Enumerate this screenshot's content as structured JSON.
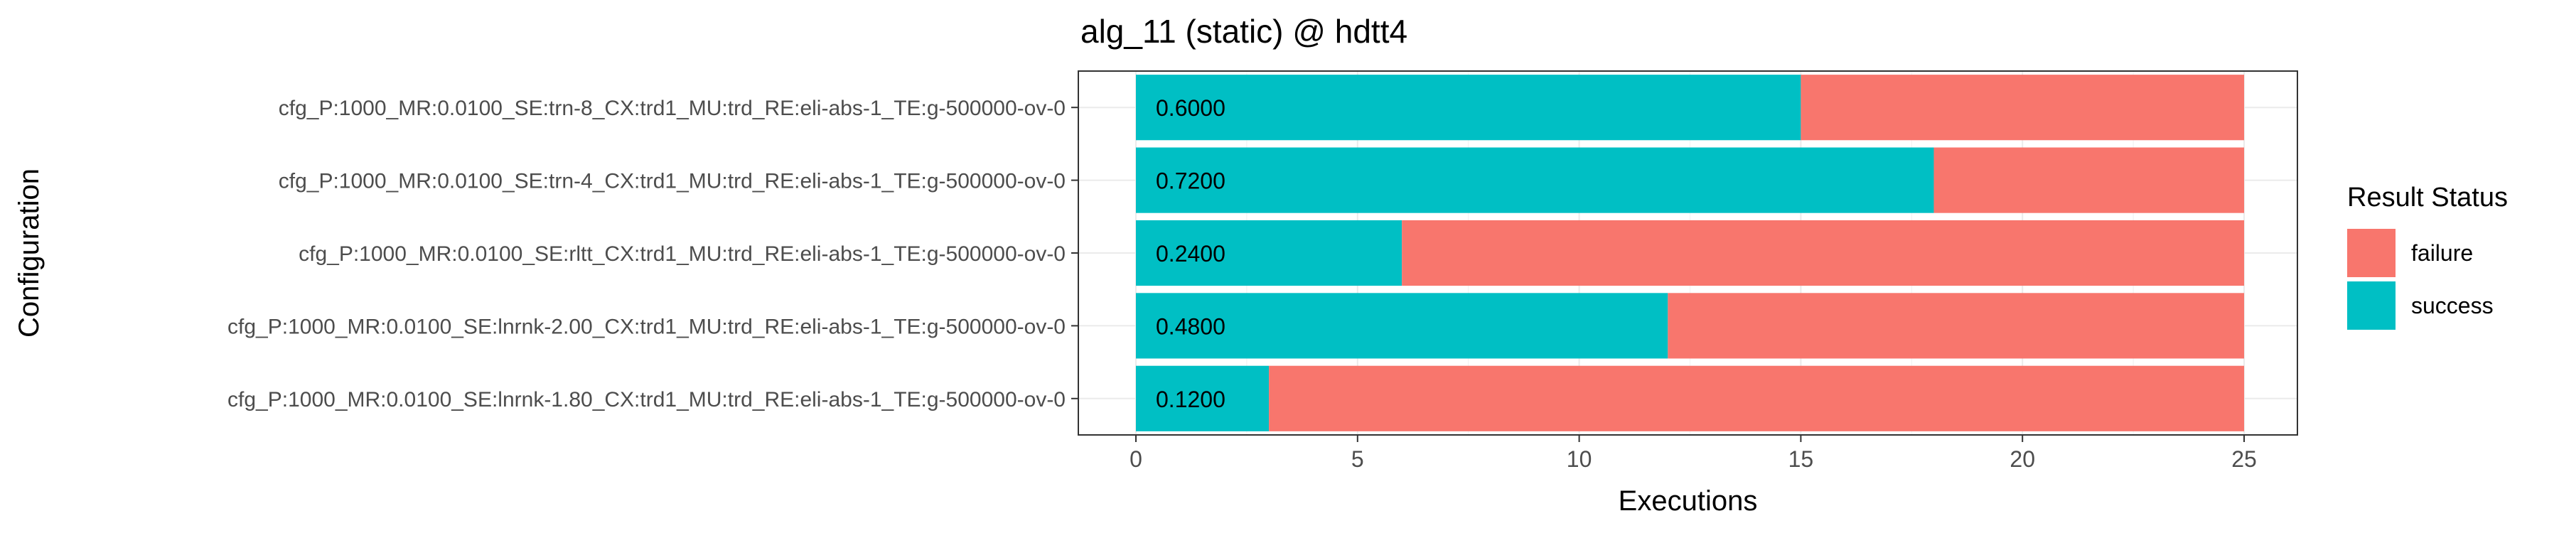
{
  "chart_data": {
    "type": "bar",
    "orientation": "horizontal",
    "stacked": true,
    "title": "alg_11 (static) @ hdtt4",
    "xlabel": "Executions",
    "ylabel": "Configuration",
    "xlim": [
      0,
      25
    ],
    "xticks": [
      0,
      5,
      10,
      15,
      20,
      25
    ],
    "grid": true,
    "categories": [
      "cfg_P:1000_MR:0.0100_SE:trn-8_CX:trd1_MU:trd_RE:eli-abs-1_TE:g-500000-ov-0",
      "cfg_P:1000_MR:0.0100_SE:trn-4_CX:trd1_MU:trd_RE:eli-abs-1_TE:g-500000-ov-0",
      "cfg_P:1000_MR:0.0100_SE:rltt_CX:trd1_MU:trd_RE:eli-abs-1_TE:g-500000-ov-0",
      "cfg_P:1000_MR:0.0100_SE:lnrnk-2.00_CX:trd1_MU:trd_RE:eli-abs-1_TE:g-500000-ov-0",
      "cfg_P:1000_MR:0.0100_SE:lnrnk-1.80_CX:trd1_MU:trd_RE:eli-abs-1_TE:g-500000-ov-0"
    ],
    "series": [
      {
        "name": "success",
        "color": "#00BFC4",
        "values": [
          15,
          18,
          6,
          12,
          3
        ]
      },
      {
        "name": "failure",
        "color": "#F8766D",
        "values": [
          10,
          7,
          19,
          13,
          22
        ]
      }
    ],
    "bar_labels": [
      "0.6000",
      "0.7200",
      "0.2400",
      "0.4800",
      "0.1200"
    ],
    "legend": {
      "title": "Result Status",
      "position": "right",
      "entries": [
        {
          "label": "failure",
          "color": "#F8766D"
        },
        {
          "label": "success",
          "color": "#00BFC4"
        }
      ]
    }
  }
}
